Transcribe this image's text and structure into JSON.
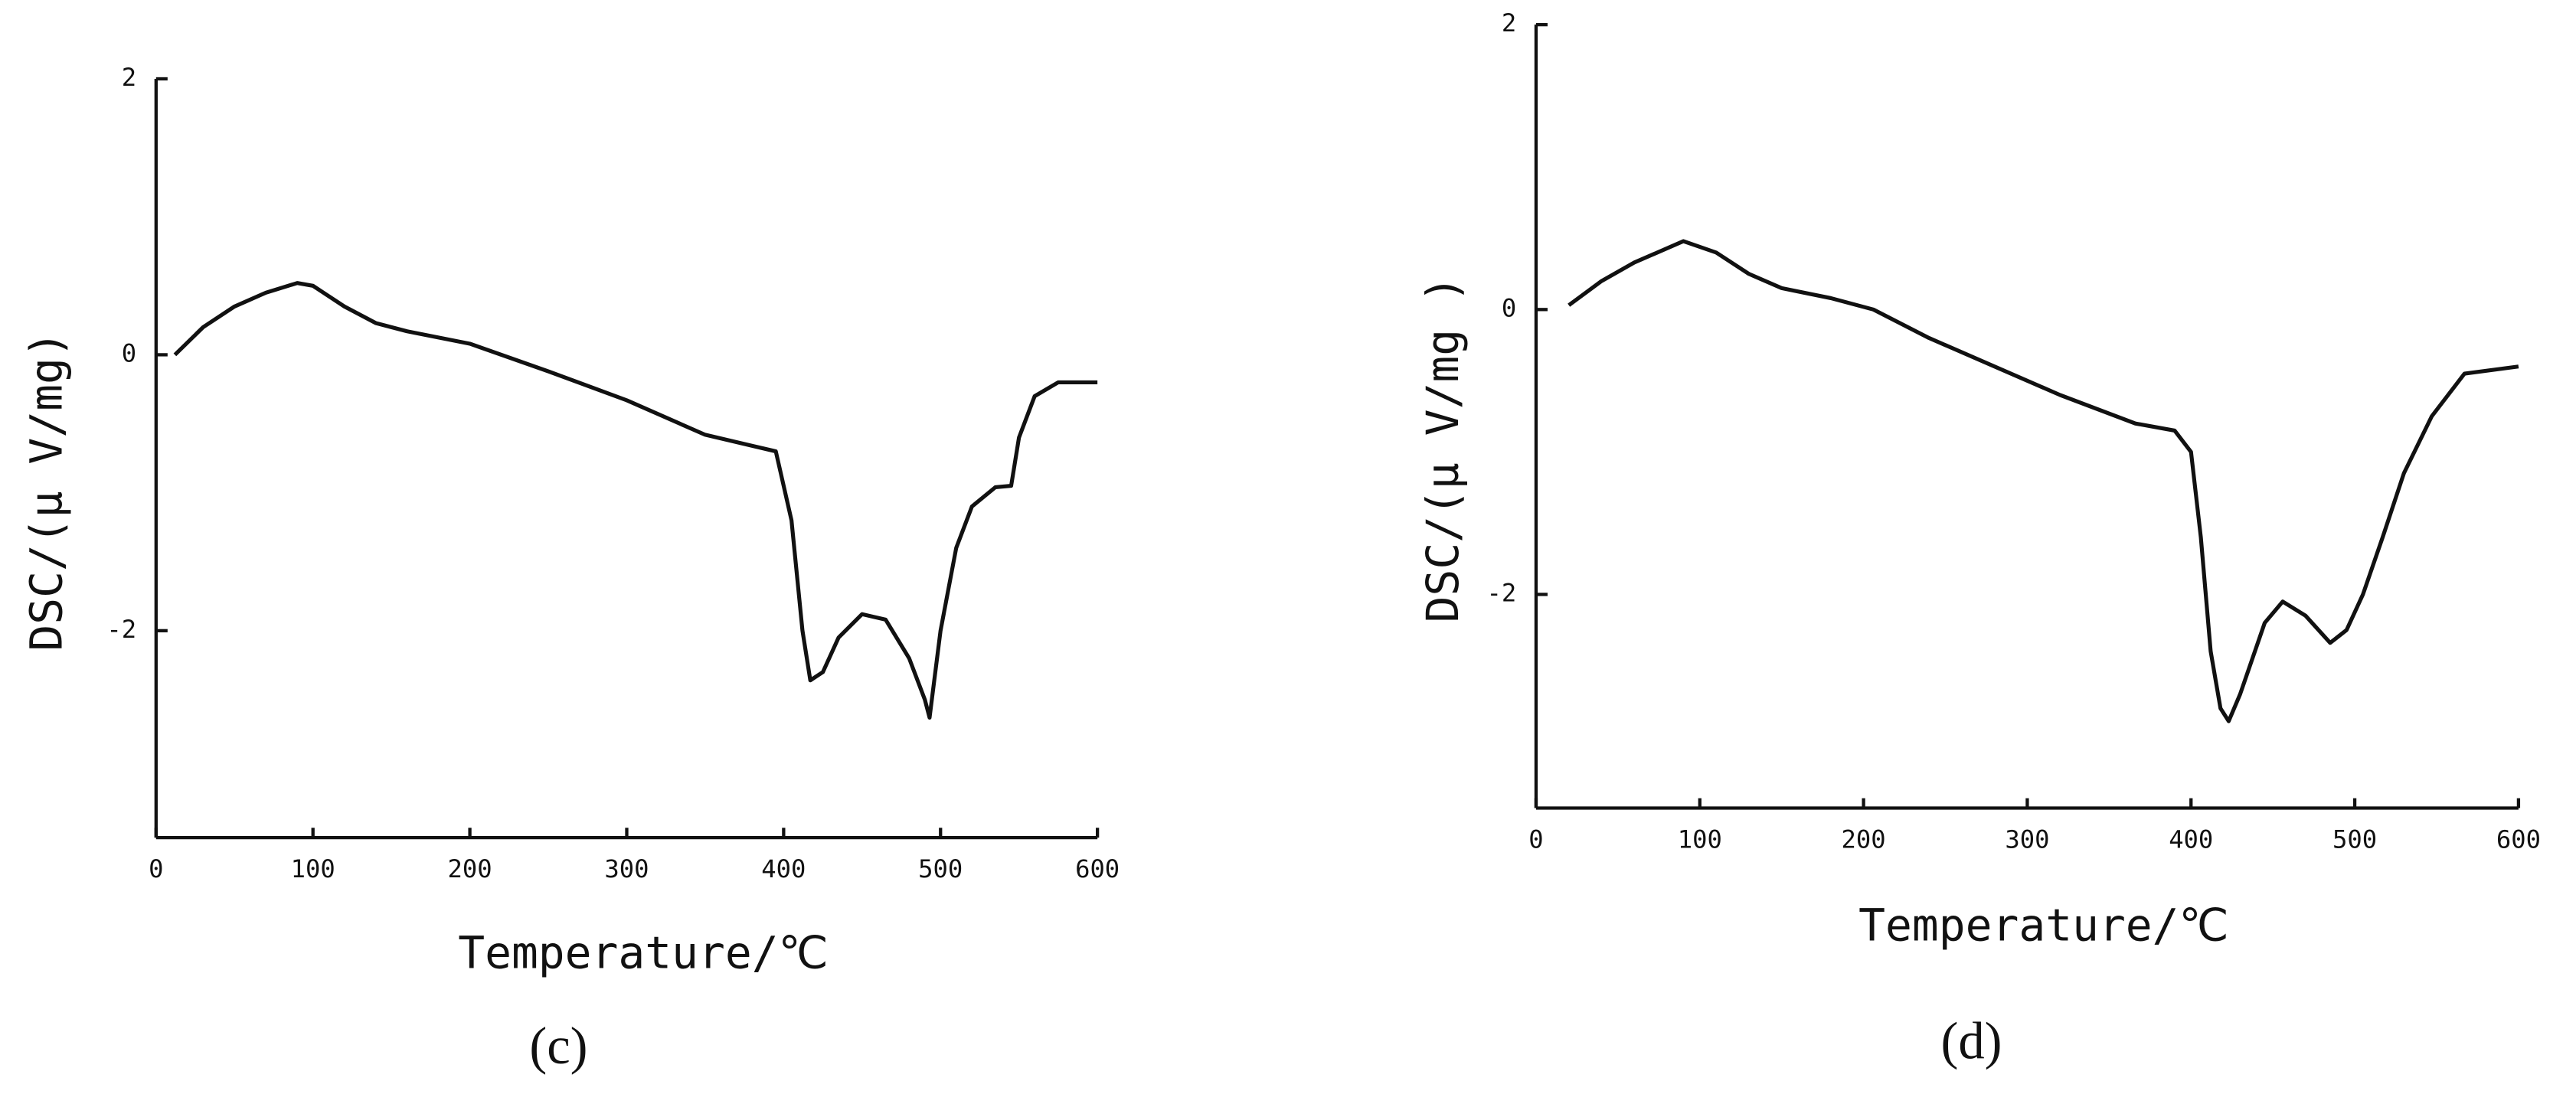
{
  "chart_data": [
    {
      "type": "line",
      "caption": "(c)",
      "xlabel": "Temperature/℃",
      "ylabel": "DSC/(μ V/mg)",
      "color": "#111111",
      "x": [
        12,
        30,
        50,
        70,
        90,
        100,
        120,
        140,
        160,
        200,
        250,
        300,
        350,
        380,
        395,
        405,
        412,
        417,
        425,
        435,
        450,
        465,
        480,
        490,
        493,
        500,
        510,
        520,
        535,
        545,
        550,
        560,
        575,
        600
      ],
      "values": [
        0,
        0.2,
        0.35,
        0.45,
        0.52,
        0.5,
        0.35,
        0.23,
        0.17,
        0.08,
        -0.12,
        -0.33,
        -0.58,
        -0.66,
        -0.7,
        -1.2,
        -2.0,
        -2.36,
        -2.3,
        -2.05,
        -1.88,
        -1.92,
        -2.2,
        -2.5,
        -2.63,
        -2.0,
        -1.4,
        -1.1,
        -0.96,
        -0.95,
        -0.6,
        -0.3,
        -0.2,
        -0.2
      ],
      "xlim": [
        0,
        600
      ],
      "xticks": [
        0,
        100,
        200,
        300,
        400,
        500,
        600
      ],
      "ylim": [
        -3.5,
        2
      ],
      "yticks": [
        -2,
        0,
        2
      ]
    },
    {
      "type": "line",
      "caption": "(d)",
      "xlabel": "Temperature/℃",
      "ylabel": "DSC/(μ V/mg )",
      "color": "#111111",
      "x": [
        20,
        40,
        60,
        90,
        110,
        130,
        150,
        180,
        206,
        240,
        280,
        320,
        366,
        390,
        400,
        406,
        412,
        418,
        423,
        430,
        445,
        456,
        470,
        485,
        495,
        505,
        517,
        530,
        547,
        567,
        600
      ],
      "values": [
        0.03,
        0.2,
        0.33,
        0.48,
        0.4,
        0.25,
        0.15,
        0.08,
        0,
        -0.2,
        -0.4,
        -0.6,
        -0.8,
        -0.85,
        -1.0,
        -1.6,
        -2.4,
        -2.8,
        -2.89,
        -2.7,
        -2.2,
        -2.05,
        -2.15,
        -2.34,
        -2.25,
        -2.0,
        -1.6,
        -1.15,
        -0.75,
        -0.45,
        -0.4
      ],
      "xlim": [
        0,
        600
      ],
      "xticks": [
        0,
        100,
        200,
        300,
        400,
        500,
        600
      ],
      "ylim": [
        -3.5,
        2
      ],
      "yticks": [
        -2,
        0,
        2
      ]
    }
  ]
}
